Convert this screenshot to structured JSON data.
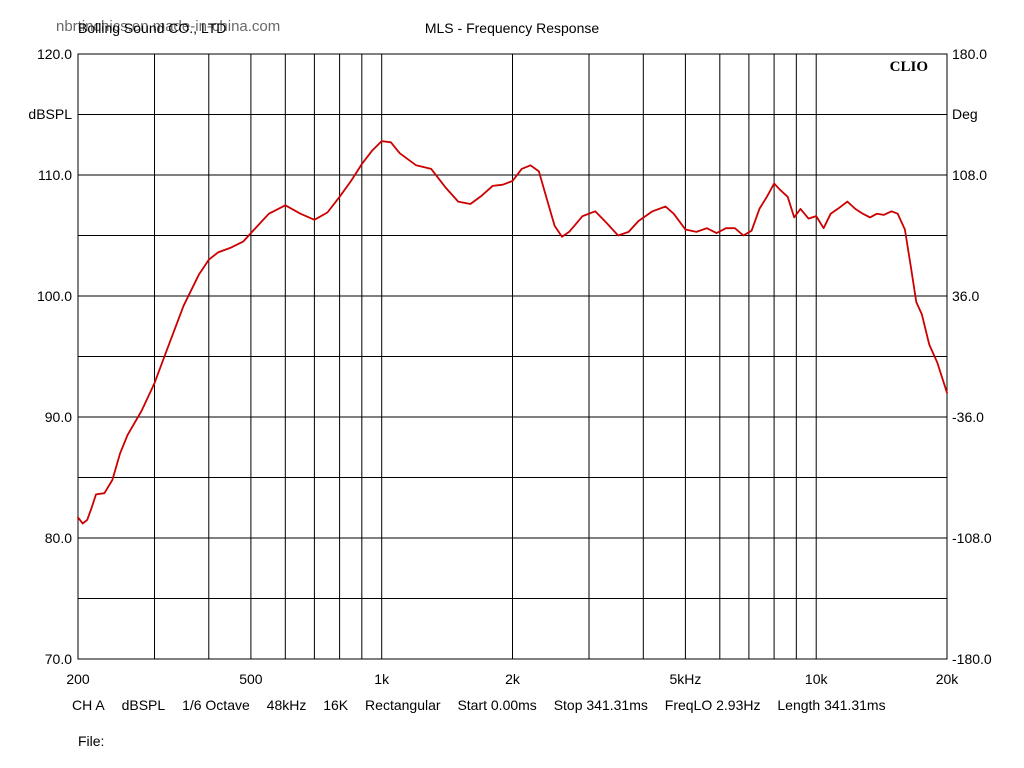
{
  "header": {
    "watermark": "nbrtinchics.en.made-in-china.com",
    "company": "Bolling Sound  CO., LTD",
    "title": "MLS - Frequency Response",
    "brand": "CLIO"
  },
  "footer": {
    "items": [
      "CH A",
      "dBSPL",
      "1/6 Octave",
      "48kHz",
      "16K",
      "Rectangular",
      "Start 0.00ms",
      "Stop 341.31ms",
      "FreqLO 2.93Hz",
      "Length 341.31ms"
    ],
    "file_label": "File:",
    "file_value": ""
  },
  "colors": {
    "curve": "#cc0000",
    "grid": "#000000",
    "background": "#ffffff"
  },
  "chart_data": {
    "type": "line",
    "title": "MLS - Frequency Response",
    "x_scale": "log",
    "xlim": [
      200,
      20000
    ],
    "ylim": [
      70,
      120
    ],
    "y2lim": [
      -180,
      180
    ],
    "ylabel": "dBSPL",
    "y2label": "Deg",
    "x_grid": [
      300,
      400,
      500,
      600,
      700,
      800,
      900,
      1000,
      2000,
      3000,
      4000,
      5000,
      6000,
      7000,
      8000,
      9000,
      10000
    ],
    "y_grid": [
      75,
      80,
      85,
      90,
      95,
      100,
      105,
      110,
      115
    ],
    "x_ticks": [
      {
        "value": 200,
        "label": "200"
      },
      {
        "value": 500,
        "label": "500"
      },
      {
        "value": 1000,
        "label": "1k"
      },
      {
        "value": 2000,
        "label": "2k"
      },
      {
        "value": 5000,
        "label": "5kHz"
      },
      {
        "value": 10000,
        "label": "10k"
      },
      {
        "value": 20000,
        "label": "20k"
      }
    ],
    "y_ticks": [
      {
        "value": 120,
        "label": "120.0"
      },
      {
        "value": 110,
        "label": "110.0"
      },
      {
        "value": 100,
        "label": "100.0"
      },
      {
        "value": 90,
        "label": "90.0"
      },
      {
        "value": 80,
        "label": "80.0"
      },
      {
        "value": 70,
        "label": "70.0"
      }
    ],
    "y2_ticks": [
      {
        "value": 180,
        "label": "180.0"
      },
      {
        "value": 108,
        "label": "108.0"
      },
      {
        "value": 36,
        "label": "36.0"
      },
      {
        "value": -36,
        "label": "-36.0"
      },
      {
        "value": -108,
        "label": "-108.0"
      },
      {
        "value": -180,
        "label": "-180.0"
      }
    ],
    "grid": true,
    "series": [
      {
        "x": [
          200,
          205,
          210,
          215,
          220,
          230,
          240,
          250,
          260,
          280,
          300,
          320,
          350,
          380,
          400,
          420,
          450,
          480,
          500,
          550,
          600,
          650,
          700,
          750,
          800,
          850,
          900,
          950,
          1000,
          1050,
          1100,
          1200,
          1300,
          1400,
          1500,
          1600,
          1700,
          1800,
          1900,
          2000,
          2100,
          2200,
          2300,
          2400,
          2500,
          2600,
          2700,
          2900,
          3100,
          3300,
          3500,
          3700,
          3900,
          4200,
          4500,
          4700,
          5000,
          5300,
          5600,
          5900,
          6200,
          6500,
          6800,
          7100,
          7400,
          7700,
          8000,
          8300,
          8600,
          8900,
          9200,
          9600,
          10000,
          10400,
          10800,
          11300,
          11800,
          12300,
          12800,
          13300,
          13800,
          14300,
          14900,
          15400,
          16000,
          16500,
          17000,
          17500,
          18200,
          19000,
          20000
        ],
        "y": [
          81.7,
          81.2,
          81.5,
          82.5,
          83.6,
          83.7,
          84.8,
          87.0,
          88.5,
          90.5,
          92.8,
          95.5,
          99.2,
          101.8,
          103.0,
          103.6,
          104.0,
          104.5,
          105.2,
          106.8,
          107.5,
          106.8,
          106.3,
          106.9,
          108.2,
          109.5,
          110.9,
          112.0,
          112.8,
          112.7,
          111.8,
          110.8,
          110.5,
          109.0,
          107.8,
          107.6,
          108.3,
          109.1,
          109.2,
          109.5,
          110.5,
          110.8,
          110.3,
          108.0,
          105.8,
          104.9,
          105.3,
          106.6,
          107.0,
          106.0,
          105.0,
          105.3,
          106.2,
          107.0,
          107.4,
          106.8,
          105.5,
          105.3,
          105.6,
          105.2,
          105.6,
          105.6,
          105.0,
          105.4,
          107.2,
          108.2,
          109.3,
          108.7,
          108.2,
          106.5,
          107.2,
          106.4,
          106.6,
          105.6,
          106.8,
          107.3,
          107.8,
          107.2,
          106.8,
          106.5,
          106.8,
          106.7,
          107.0,
          106.8,
          105.5,
          102.5,
          99.5,
          98.5,
          96.0,
          94.5,
          92.0
        ]
      }
    ]
  }
}
